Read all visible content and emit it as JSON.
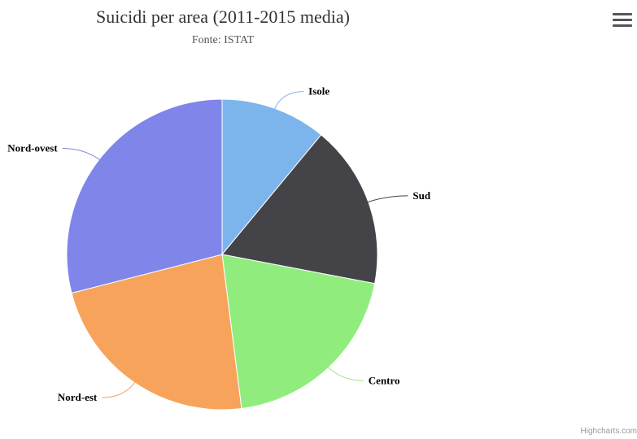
{
  "title": "Suicidi per area (2011-2015 media)",
  "subtitle": "Fonte: ISTAT",
  "credits": "Highcharts.com",
  "menu_icon": "hamburger-menu-icon",
  "chart_data": {
    "type": "pie",
    "title": "Suicidi per area (2011-2015 media)",
    "subtitle": "Fonte: ISTAT",
    "slices": [
      {
        "label": "Isole",
        "value": 11,
        "color": "#7cb5ec"
      },
      {
        "label": "Sud",
        "value": 17,
        "color": "#434348"
      },
      {
        "label": "Centro",
        "value": 20,
        "color": "#90ed7d"
      },
      {
        "label": "Nord-est",
        "value": 23,
        "color": "#f7a35c"
      },
      {
        "label": "Nord-ovest",
        "value": 29,
        "color": "#8085e9"
      }
    ]
  }
}
